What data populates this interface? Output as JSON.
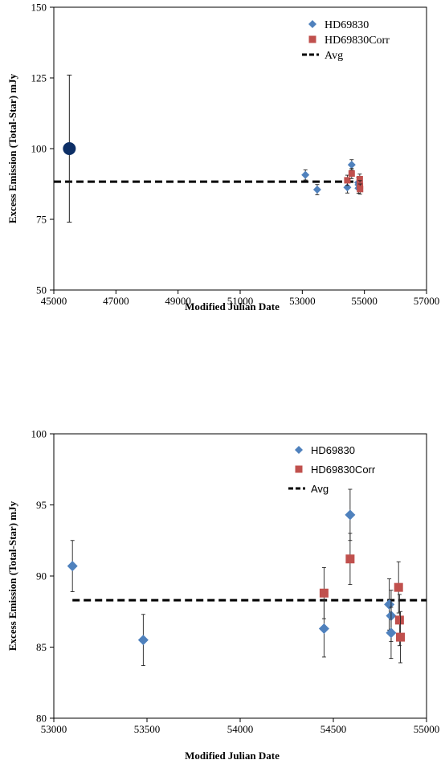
{
  "chart_data": [
    {
      "type": "scatter",
      "xlabel": "Modified Julian Date",
      "ylabel": "Excess Emission (Total-Star) mJy",
      "xlim": [
        45000,
        57000
      ],
      "ylim": [
        50,
        150
      ],
      "xticks": [
        45000,
        47000,
        49000,
        51000,
        53000,
        55000,
        57000
      ],
      "yticks": [
        50,
        75,
        100,
        125,
        150
      ],
      "grid": false,
      "legend_position": "top-right",
      "legend": [
        "HD69830",
        "HD69830Corr",
        "Avg"
      ],
      "extra_point": {
        "x": 45500,
        "y": 100,
        "err": 26,
        "color": "#0d2f66"
      },
      "series": [
        {
          "name": "HD69830",
          "marker": "diamond",
          "color": "#4f81bd",
          "x": [
            53100,
            53480,
            54450,
            54590,
            54800,
            54810,
            54810
          ],
          "y": [
            90.7,
            85.5,
            86.3,
            94.3,
            88.0,
            87.2,
            86.0
          ],
          "err": [
            1.8,
            1.8,
            2.0,
            1.8,
            1.8,
            1.8,
            1.8
          ]
        },
        {
          "name": "HD69830Corr",
          "marker": "square",
          "color": "#c0504d",
          "x": [
            54450,
            54590,
            54850,
            54855,
            54860
          ],
          "y": [
            88.8,
            91.2,
            89.2,
            86.9,
            85.7
          ],
          "err": [
            1.8,
            1.8,
            1.8,
            1.8,
            1.8
          ]
        },
        {
          "name": "Avg",
          "marker": "dashed-line",
          "color": "#000000",
          "x": [
            45000,
            54860
          ],
          "y": [
            88.3,
            88.3
          ]
        }
      ]
    },
    {
      "type": "scatter",
      "xlabel": "Modified Julian Date",
      "ylabel": "Excess Emission (Total-Star) mJy",
      "xlim": [
        53000,
        55000
      ],
      "ylim": [
        80,
        100
      ],
      "xticks": [
        53000,
        53500,
        54000,
        54500,
        55000
      ],
      "yticks": [
        80,
        85,
        90,
        95,
        100
      ],
      "grid": false,
      "legend_position": "top-right",
      "legend": [
        "HD69830",
        "HD69830Corr",
        "Avg"
      ],
      "series": [
        {
          "name": "HD69830",
          "marker": "diamond",
          "color": "#4f81bd",
          "x": [
            53100,
            53480,
            54450,
            54590,
            54800,
            54810,
            54810
          ],
          "y": [
            90.7,
            85.5,
            86.3,
            94.3,
            88.0,
            87.2,
            86.0
          ],
          "err": [
            1.8,
            1.8,
            2.0,
            1.8,
            1.8,
            1.8,
            1.8
          ]
        },
        {
          "name": "HD69830Corr",
          "marker": "square",
          "color": "#c0504d",
          "x": [
            54450,
            54590,
            54850,
            54855,
            54860
          ],
          "y": [
            88.8,
            91.2,
            89.2,
            86.9,
            85.7
          ],
          "err": [
            1.8,
            1.8,
            1.8,
            1.8,
            1.8
          ]
        },
        {
          "name": "Avg",
          "marker": "dashed-line",
          "color": "#000000",
          "x": [
            53100,
            55000
          ],
          "y": [
            88.3,
            88.3
          ]
        }
      ]
    }
  ]
}
